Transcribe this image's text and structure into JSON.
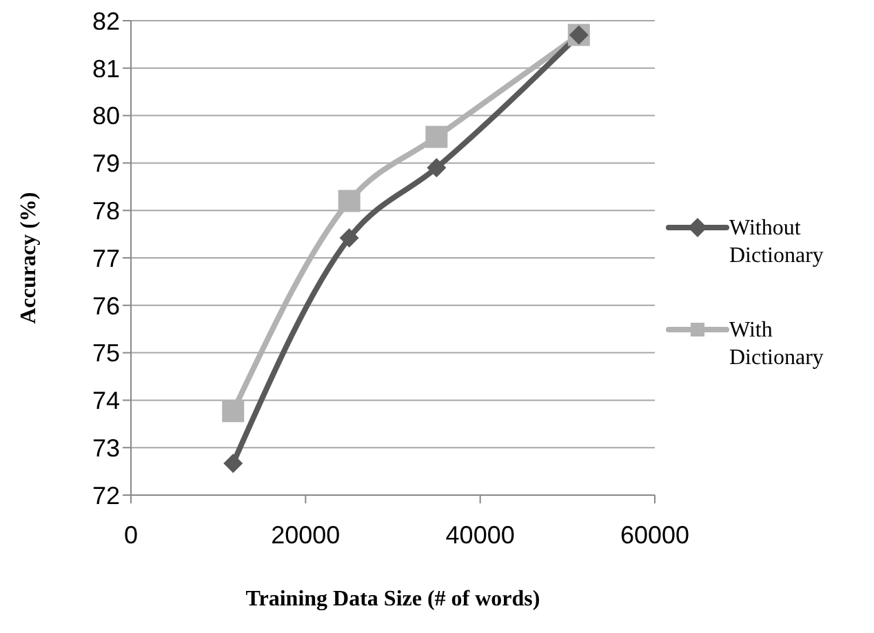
{
  "chart_data": {
    "type": "line",
    "xlabel": "Training Data Size (# of words)",
    "ylabel": "Accuracy (%)",
    "xlim": [
      0,
      60000
    ],
    "xticks": [
      0,
      20000,
      40000,
      60000
    ],
    "ylim": [
      72,
      82
    ],
    "yticks": [
      72,
      73,
      74,
      75,
      76,
      77,
      78,
      79,
      80,
      81,
      82
    ],
    "grid": "y",
    "legend": "right",
    "series": [
      {
        "name": "Without Dictionary",
        "color": "#595959",
        "marker": "diamond",
        "x": [
          11700,
          25000,
          35000,
          51300
        ],
        "values": [
          72.67,
          77.42,
          78.9,
          81.7
        ]
      },
      {
        "name": "With Dictionary",
        "color": "#b2b2b2",
        "marker": "square",
        "x": [
          11700,
          25000,
          35000,
          51300
        ],
        "values": [
          73.77,
          78.2,
          79.55,
          81.7
        ]
      }
    ]
  }
}
